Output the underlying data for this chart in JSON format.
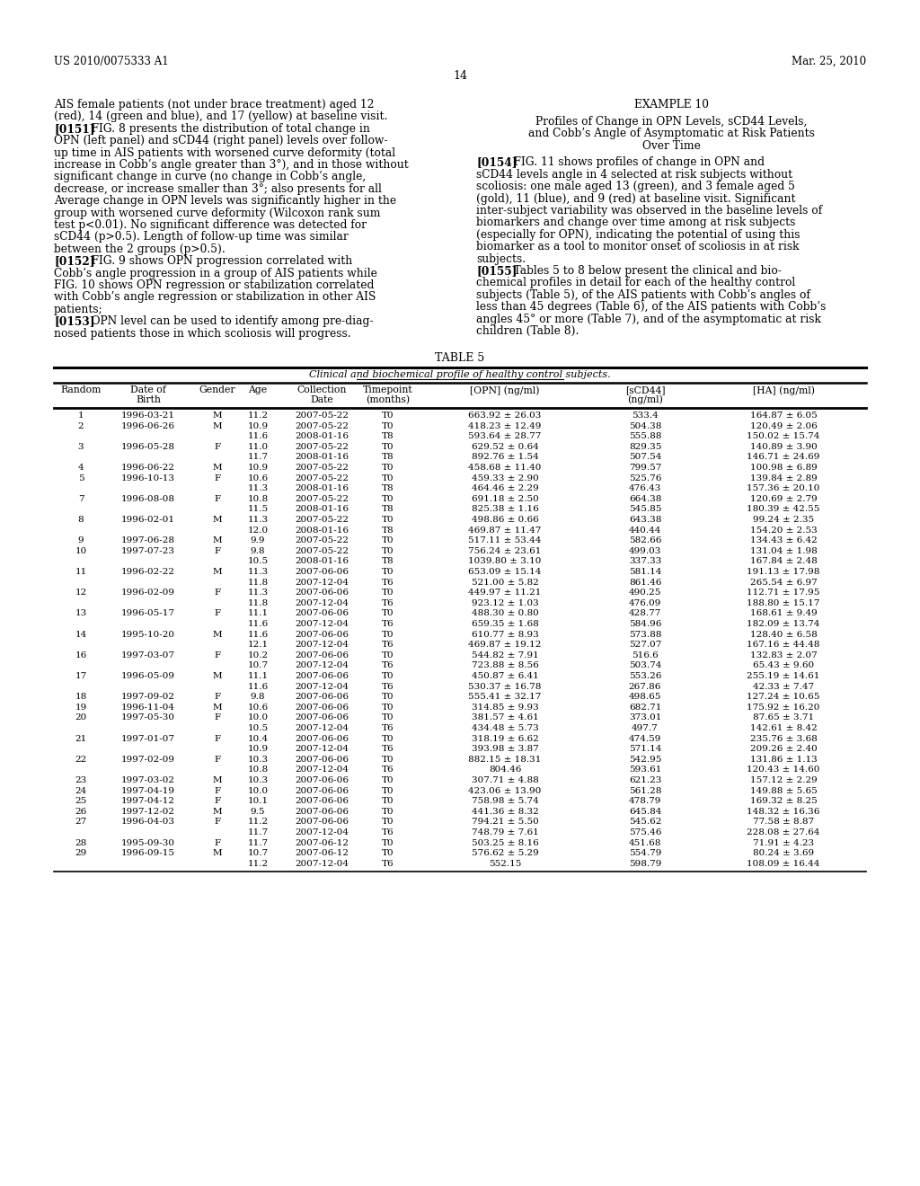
{
  "header_left": "US 2010/0075333 A1",
  "header_right": "Mar. 25, 2010",
  "page_number": "14",
  "table_title": "TABLE 5",
  "table_subtitle": "Clinical and biochemical profile of healthy control subjects.",
  "table_data": [
    [
      "1",
      "1996-03-21",
      "M",
      "11.2",
      "2007-05-22",
      "T0",
      "663.92 ± 26.03",
      "533.4",
      "164.87 ± 6.05"
    ],
    [
      "2",
      "1996-06-26",
      "M",
      "10.9",
      "2007-05-22",
      "T0",
      "418.23 ± 12.49",
      "504.38",
      "120.49 ± 2.06"
    ],
    [
      "",
      "",
      "",
      "11.6",
      "2008-01-16",
      "T8",
      "593.64 ± 28.77",
      "555.88",
      "150.02 ± 15.74"
    ],
    [
      "3",
      "1996-05-28",
      "F",
      "11.0",
      "2007-05-22",
      "T0",
      "629.52 ± 0.64",
      "829.35",
      "140.89 ± 3.90"
    ],
    [
      "",
      "",
      "",
      "11.7",
      "2008-01-16",
      "T8",
      "892.76 ± 1.54",
      "507.54",
      "146.71 ± 24.69"
    ],
    [
      "4",
      "1996-06-22",
      "M",
      "10.9",
      "2007-05-22",
      "T0",
      "458.68 ± 11.40",
      "799.57",
      "100.98 ± 6.89"
    ],
    [
      "5",
      "1996-10-13",
      "F",
      "10.6",
      "2007-05-22",
      "T0",
      "459.33 ± 2.90",
      "525.76",
      "139.84 ± 2.89"
    ],
    [
      "",
      "",
      "",
      "11.3",
      "2008-01-16",
      "T8",
      "464.46 ± 2.29",
      "476.43",
      "157.36 ± 20.10"
    ],
    [
      "7",
      "1996-08-08",
      "F",
      "10.8",
      "2007-05-22",
      "T0",
      "691.18 ± 2.50",
      "664.38",
      "120.69 ± 2.79"
    ],
    [
      "",
      "",
      "",
      "11.5",
      "2008-01-16",
      "T8",
      "825.38 ± 1.16",
      "545.85",
      "180.39 ± 42.55"
    ],
    [
      "8",
      "1996-02-01",
      "M",
      "11.3",
      "2007-05-22",
      "T0",
      "498.86 ± 0.66",
      "643.38",
      "99.24 ± 2.35"
    ],
    [
      "",
      "",
      "",
      "12.0",
      "2008-01-16",
      "T8",
      "469.87 ± 11.47",
      "440.44",
      "154.20 ± 2.53"
    ],
    [
      "9",
      "1997-06-28",
      "M",
      "9.9",
      "2007-05-22",
      "T0",
      "517.11 ± 53.44",
      "582.66",
      "134.43 ± 6.42"
    ],
    [
      "10",
      "1997-07-23",
      "F",
      "9.8",
      "2007-05-22",
      "T0",
      "756.24 ± 23.61",
      "499.03",
      "131.04 ± 1.98"
    ],
    [
      "",
      "",
      "",
      "10.5",
      "2008-01-16",
      "T8",
      "1039.80 ± 3.10",
      "337.33",
      "167.84 ± 2.48"
    ],
    [
      "11",
      "1996-02-22",
      "M",
      "11.3",
      "2007-06-06",
      "T0",
      "653.09 ± 15.14",
      "581.14",
      "191.13 ± 17.98"
    ],
    [
      "",
      "",
      "",
      "11.8",
      "2007-12-04",
      "T6",
      "521.00 ± 5.82",
      "861.46",
      "265.54 ± 6.97"
    ],
    [
      "12",
      "1996-02-09",
      "F",
      "11.3",
      "2007-06-06",
      "T0",
      "449.97 ± 11.21",
      "490.25",
      "112.71 ± 17.95"
    ],
    [
      "",
      "",
      "",
      "11.8",
      "2007-12-04",
      "T6",
      "923.12 ± 1.03",
      "476.09",
      "188.80 ± 15.17"
    ],
    [
      "13",
      "1996-05-17",
      "F",
      "11.1",
      "2007-06-06",
      "T0",
      "488.30 ± 0.80",
      "428.77",
      "168.61 ± 9.49"
    ],
    [
      "",
      "",
      "",
      "11.6",
      "2007-12-04",
      "T6",
      "659.35 ± 1.68",
      "584.96",
      "182.09 ± 13.74"
    ],
    [
      "14",
      "1995-10-20",
      "M",
      "11.6",
      "2007-06-06",
      "T0",
      "610.77 ± 8.93",
      "573.88",
      "128.40 ± 6.58"
    ],
    [
      "",
      "",
      "",
      "12.1",
      "2007-12-04",
      "T6",
      "469.87 ± 19.12",
      "527.07",
      "167.16 ± 44.48"
    ],
    [
      "16",
      "1997-03-07",
      "F",
      "10.2",
      "2007-06-06",
      "T0",
      "544.82 ± 7.91",
      "516.6",
      "132.83 ± 2.07"
    ],
    [
      "",
      "",
      "",
      "10.7",
      "2007-12-04",
      "T6",
      "723.88 ± 8.56",
      "503.74",
      "65.43 ± 9.60"
    ],
    [
      "17",
      "1996-05-09",
      "M",
      "11.1",
      "2007-06-06",
      "T0",
      "450.87 ± 6.41",
      "553.26",
      "255.19 ± 14.61"
    ],
    [
      "",
      "",
      "",
      "11.6",
      "2007-12-04",
      "T6",
      "530.37 ± 16.78",
      "267.86",
      "42.33 ± 7.47"
    ],
    [
      "18",
      "1997-09-02",
      "F",
      "9.8",
      "2007-06-06",
      "T0",
      "555.41 ± 32.17",
      "498.65",
      "127.24 ± 10.65"
    ],
    [
      "19",
      "1996-11-04",
      "M",
      "10.6",
      "2007-06-06",
      "T0",
      "314.85 ± 9.93",
      "682.71",
      "175.92 ± 16.20"
    ],
    [
      "20",
      "1997-05-30",
      "F",
      "10.0",
      "2007-06-06",
      "T0",
      "381.57 ± 4.61",
      "373.01",
      "87.65 ± 3.71"
    ],
    [
      "",
      "",
      "",
      "10.5",
      "2007-12-04",
      "T6",
      "434.48 ± 5.73",
      "497.7",
      "142.61 ± 8.42"
    ],
    [
      "21",
      "1997-01-07",
      "F",
      "10.4",
      "2007-06-06",
      "T0",
      "318.19 ± 6.62",
      "474.59",
      "235.76 ± 3.68"
    ],
    [
      "",
      "",
      "",
      "10.9",
      "2007-12-04",
      "T6",
      "393.98 ± 3.87",
      "571.14",
      "209.26 ± 2.40"
    ],
    [
      "22",
      "1997-02-09",
      "F",
      "10.3",
      "2007-06-06",
      "T0",
      "882.15 ± 18.31",
      "542.95",
      "131.86 ± 1.13"
    ],
    [
      "",
      "",
      "",
      "10.8",
      "2007-12-04",
      "T6",
      "804.46",
      "593.61",
      "120.43 ± 14.60"
    ],
    [
      "23",
      "1997-03-02",
      "M",
      "10.3",
      "2007-06-06",
      "T0",
      "307.71 ± 4.88",
      "621.23",
      "157.12 ± 2.29"
    ],
    [
      "24",
      "1997-04-19",
      "F",
      "10.0",
      "2007-06-06",
      "T0",
      "423.06 ± 13.90",
      "561.28",
      "149.88 ± 5.65"
    ],
    [
      "25",
      "1997-04-12",
      "F",
      "10.1",
      "2007-06-06",
      "T0",
      "758.98 ± 5.74",
      "478.79",
      "169.32 ± 8.25"
    ],
    [
      "26",
      "1997-12-02",
      "M",
      "9.5",
      "2007-06-06",
      "T0",
      "441.36 ± 8.32",
      "645.84",
      "148.32 ± 16.36"
    ],
    [
      "27",
      "1996-04-03",
      "F",
      "11.2",
      "2007-06-06",
      "T0",
      "794.21 ± 5.50",
      "545.62",
      "77.58 ± 8.87"
    ],
    [
      "",
      "",
      "",
      "11.7",
      "2007-12-04",
      "T6",
      "748.79 ± 7.61",
      "575.46",
      "228.08 ± 27.64"
    ],
    [
      "28",
      "1995-09-30",
      "F",
      "11.7",
      "2007-06-12",
      "T0",
      "503.25 ± 8.16",
      "451.68",
      "71.91 ± 4.23"
    ],
    [
      "29",
      "1996-09-15",
      "M",
      "10.7",
      "2007-06-12",
      "T0",
      "576.62 ± 5.29",
      "554.79",
      "80.24 ± 3.69"
    ],
    [
      "",
      "",
      "",
      "11.2",
      "2007-12-04",
      "T6",
      "552.15",
      "598.79",
      "108.09 ± 16.44"
    ]
  ]
}
